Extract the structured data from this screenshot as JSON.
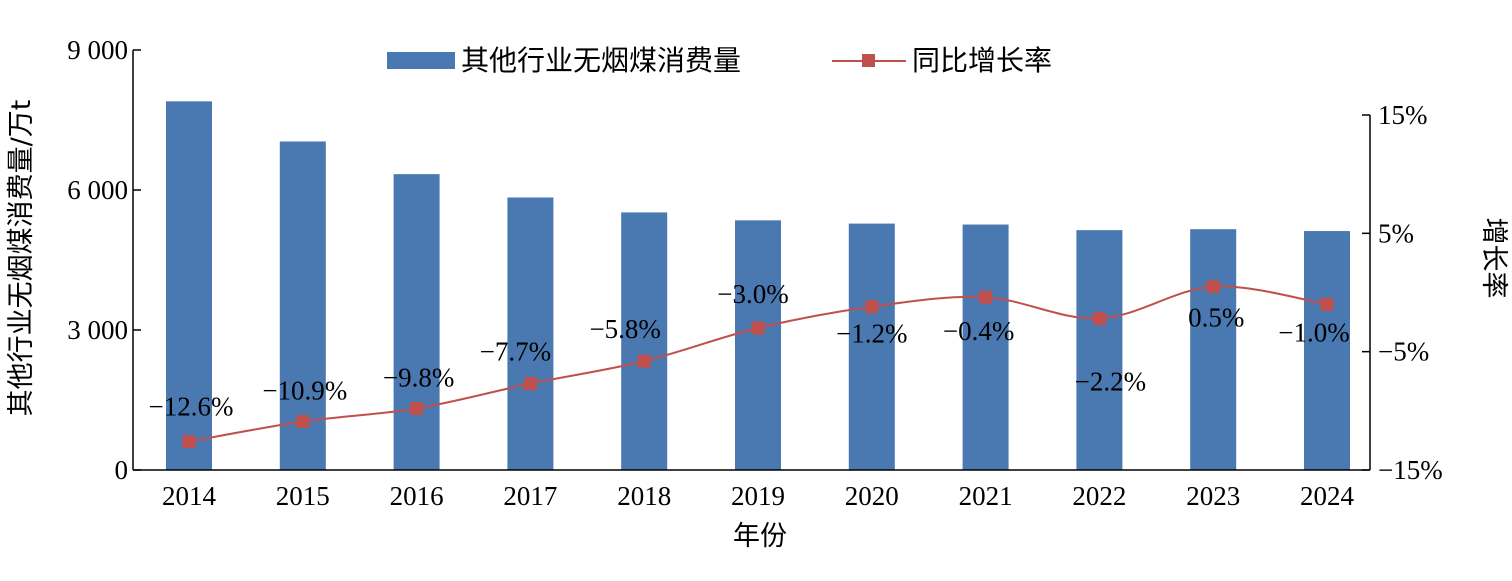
{
  "chart_data": {
    "type": "bar",
    "categories": [
      "2014",
      "2015",
      "2016",
      "2017",
      "2018",
      "2019",
      "2020",
      "2021",
      "2022",
      "2023",
      "2024"
    ],
    "series": [
      {
        "name": "其他行业无烟煤消费量",
        "type": "bar",
        "axis": "left",
        "color": "#4a78b0",
        "values": [
          7900,
          7040,
          6340,
          5840,
          5520,
          5350,
          5280,
          5260,
          5140,
          5160,
          5120
        ]
      },
      {
        "name": "同比增长率",
        "type": "line",
        "axis": "right",
        "color": "#c0504d",
        "values": [
          -12.6,
          -10.9,
          -9.8,
          -7.7,
          -5.8,
          -3.0,
          -1.2,
          -0.4,
          -2.2,
          0.5,
          -1.0
        ],
        "labels": [
          "−12.6%",
          "−10.9%",
          "−9.8%",
          "−7.7%",
          "−5.8%",
          "−3.0%",
          "−1.2%",
          "−0.4%",
          "−2.2%",
          "0.5%",
          "−1.0%"
        ]
      }
    ],
    "xlabel": "年份",
    "ylabel": "其他行业无烟煤消费量/万t",
    "y2label": "增长率",
    "ylim": [
      0,
      9000
    ],
    "y2lim": [
      -15,
      15
    ],
    "yticks": [
      0,
      3000,
      6000,
      9000
    ],
    "ytick_labels": [
      "0",
      "3 000",
      "6 000",
      "9 000"
    ],
    "y2ticks": [
      -15,
      -5,
      5,
      15
    ],
    "y2tick_labels": [
      "−15%",
      "−5%",
      "5%",
      "15%"
    ],
    "legend_position": "top-center",
    "grid": false
  }
}
